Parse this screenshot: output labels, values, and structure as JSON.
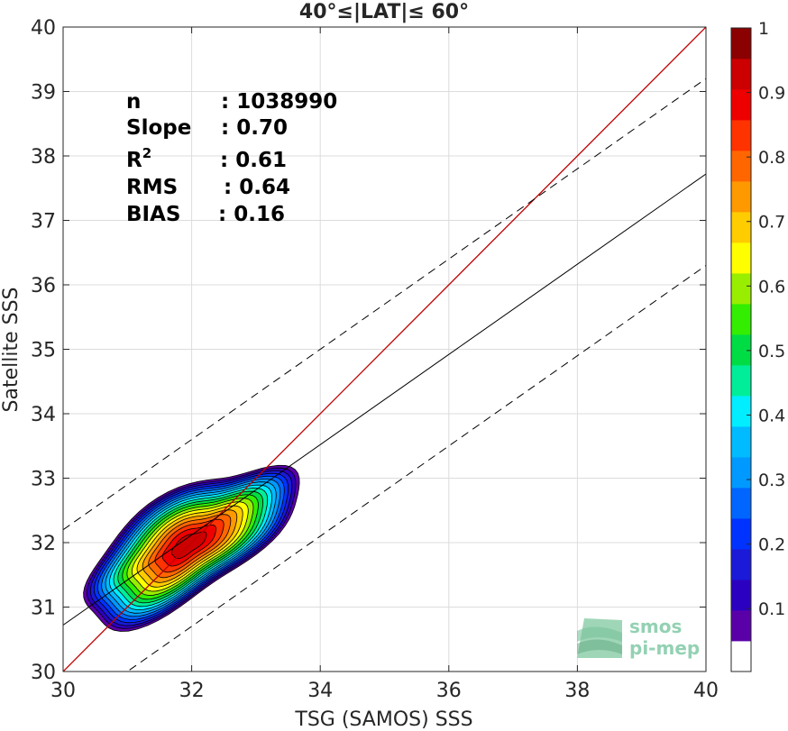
{
  "chart_data": {
    "type": "density-contour",
    "title": "40°≤|LAT|≤ 60°",
    "xlabel": "TSG (SAMOS) SSS",
    "ylabel": "Satellite SSS",
    "xlim": [
      30,
      40
    ],
    "ylim": [
      30,
      40
    ],
    "xticks": [
      "30",
      "32",
      "34",
      "36",
      "38",
      "40"
    ],
    "yticks": [
      "30",
      "31",
      "32",
      "33",
      "34",
      "35",
      "36",
      "37",
      "38",
      "39",
      "40"
    ],
    "grid": true,
    "stats": [
      {
        "label": "n",
        "value": ": 1038990"
      },
      {
        "label": "Slope",
        "value": ": 0.70"
      },
      {
        "label": "R",
        "sup": "2",
        "value": ": 0.61"
      },
      {
        "label": "RMS",
        "value": ": 0.64"
      },
      {
        "label": "BIAS",
        "value": ": 0.16"
      }
    ],
    "density_peak": {
      "x": 31.95,
      "y": 31.97
    },
    "one_to_one_line": {
      "slope": 1,
      "intercept": 0,
      "color": "#c00000"
    },
    "regression_line": {
      "slope": 0.7,
      "intercept": 9.72,
      "color": "#000000"
    },
    "dashed_bounds": [
      {
        "slope": 0.7,
        "intercept": 11.2
      },
      {
        "slope": 0.7,
        "intercept": 8.3
      }
    ],
    "contour_levels": [
      0.05,
      0.1,
      0.15,
      0.2,
      0.25,
      0.3,
      0.35,
      0.4,
      0.45,
      0.5,
      0.55,
      0.6,
      0.65,
      0.7,
      0.75,
      0.8,
      0.85,
      0.9,
      0.95,
      1.0
    ],
    "colorbar": {
      "ticks": [
        "0.1",
        "0.2",
        "0.3",
        "0.4",
        "0.5",
        "0.6",
        "0.7",
        "0.8",
        "0.9",
        "1"
      ],
      "range": [
        0.05,
        1.0
      ],
      "colors": [
        "#ffffff",
        "#5a00a8",
        "#2c00c0",
        "#1a1ad8",
        "#0033ff",
        "#0066ff",
        "#0099ff",
        "#00bbff",
        "#00eeff",
        "#00ee99",
        "#00dd44",
        "#33ee00",
        "#99ee00",
        "#ffff00",
        "#ffcc00",
        "#ff9900",
        "#ff6600",
        "#ff3300",
        "#ee0000",
        "#cc0000",
        "#8b0000"
      ]
    }
  },
  "logo": {
    "line1": "smos",
    "line2": "pi-mep"
  },
  "colors": {
    "grid": "#dcdcdc",
    "axis": "#262626",
    "one_to_one": "#c00000"
  }
}
